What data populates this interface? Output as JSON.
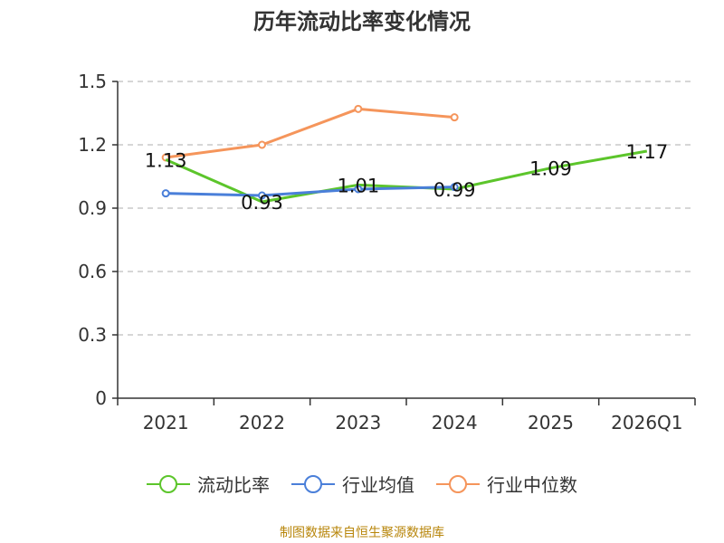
{
  "chart_data": {
    "type": "line",
    "title": "历年流动比率变化情况",
    "categories": [
      "2021",
      "2022",
      "2023",
      "2024",
      "2025",
      "2026Q1"
    ],
    "ylim": [
      0,
      1.5
    ],
    "yticks": [
      "0",
      "0.3",
      "0.6",
      "0.9",
      "1.2",
      "1.5"
    ],
    "ytick_values": [
      0,
      0.3,
      0.6,
      0.9,
      1.2,
      1.5
    ],
    "grid": true,
    "legend_position": "bottom",
    "series": [
      {
        "name": "流动比率",
        "color": "#5cc52b",
        "values": [
          1.13,
          0.93,
          1.01,
          0.99,
          1.09,
          1.17
        ],
        "labels": [
          "1.13",
          "0.93",
          "1.01",
          "0.99",
          "1.09",
          "1.17"
        ]
      },
      {
        "name": "行业均值",
        "color": "#4a7fd9",
        "values": [
          0.97,
          0.96,
          0.99,
          1.0,
          null,
          null
        ]
      },
      {
        "name": "行业中位数",
        "color": "#f5955b",
        "values": [
          1.14,
          1.2,
          1.37,
          1.33,
          null,
          null
        ]
      }
    ]
  },
  "source": "制图数据来自恒生聚源数据库"
}
